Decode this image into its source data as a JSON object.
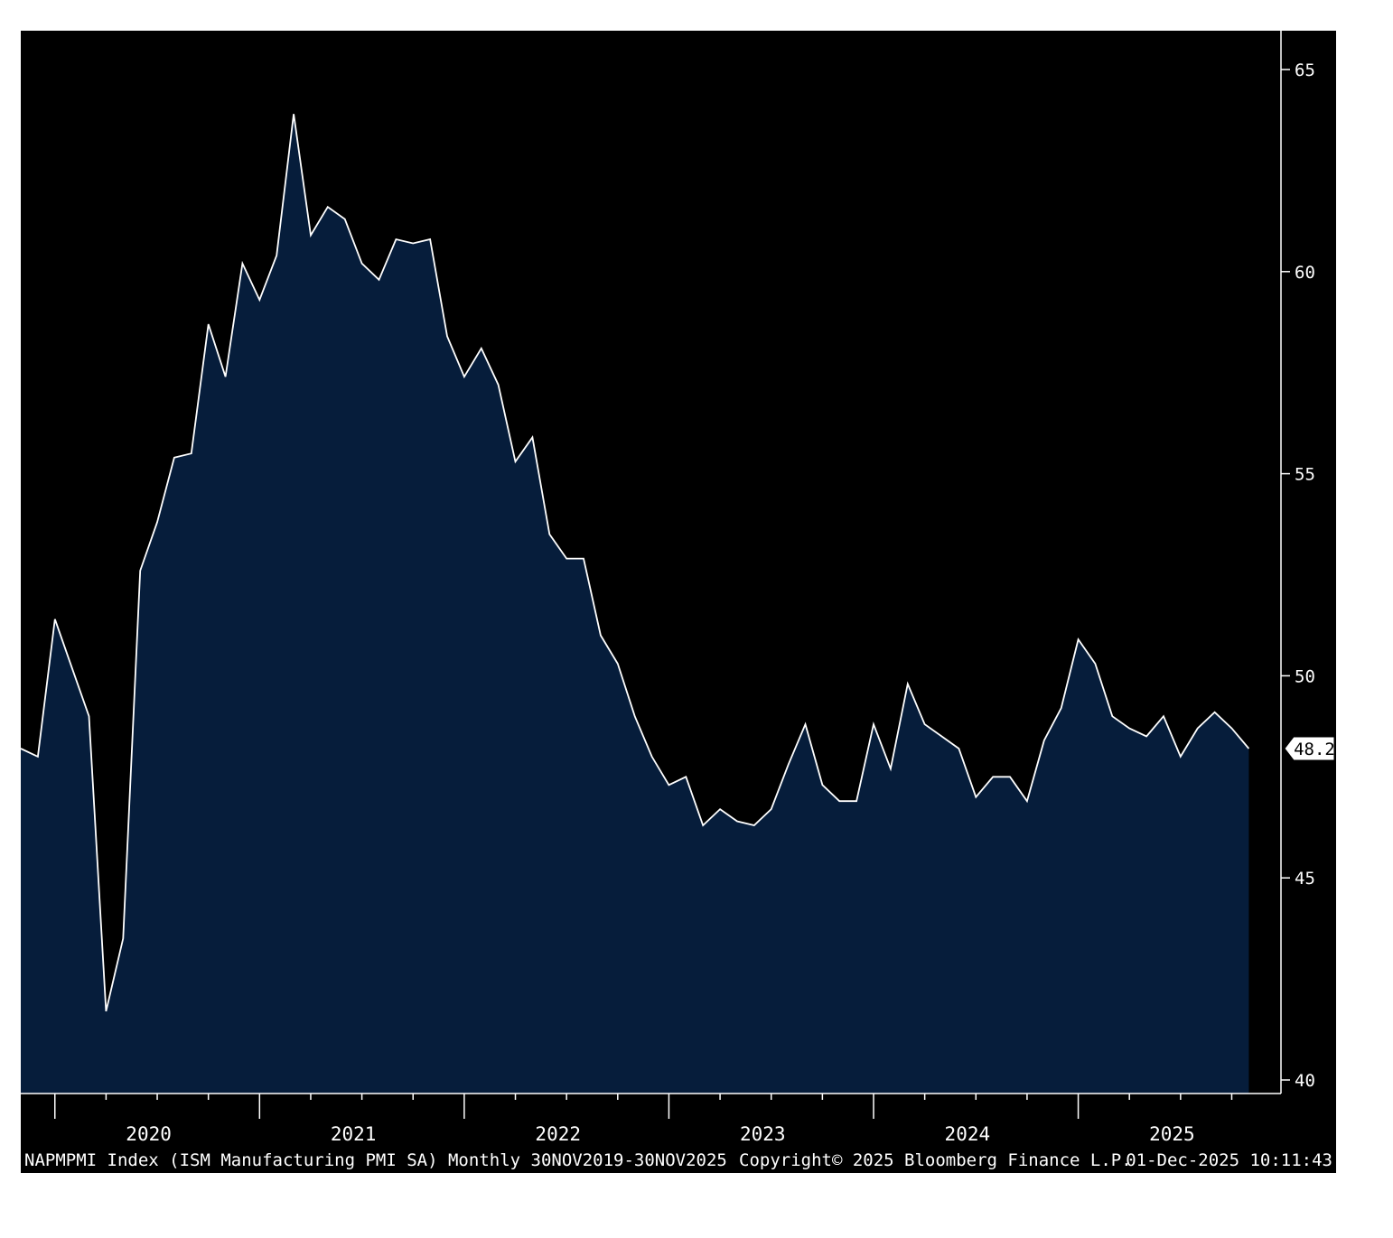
{
  "chart_data": {
    "type": "area",
    "title": "",
    "xlabel": "",
    "ylabel": "",
    "ylim": [
      40,
      66
    ],
    "y_ticks": [
      40,
      45,
      50,
      55,
      60,
      65
    ],
    "grid": false,
    "x_start": "2019-11",
    "x_end": "2025-11",
    "year_labels": [
      "2020",
      "2021",
      "2022",
      "2023",
      "2024",
      "2025"
    ],
    "series": [
      {
        "values": [
          48.2,
          48.0,
          51.4,
          50.2,
          49.0,
          41.7,
          43.5,
          52.6,
          53.8,
          55.4,
          55.5,
          58.7,
          57.4,
          60.2,
          59.3,
          60.4,
          63.9,
          60.9,
          61.6,
          61.3,
          60.2,
          59.8,
          60.8,
          60.7,
          60.8,
          58.4,
          57.4,
          58.1,
          57.2,
          55.3,
          55.9,
          53.5,
          52.9,
          52.9,
          51.0,
          50.3,
          49.0,
          48.0,
          47.3,
          47.5,
          46.3,
          46.7,
          46.4,
          46.3,
          46.7,
          47.8,
          48.8,
          47.3,
          46.9,
          46.9,
          48.8,
          47.7,
          49.8,
          48.8,
          48.5,
          48.2,
          47.0,
          47.5,
          47.5,
          46.9,
          48.4,
          49.2,
          50.9,
          50.3,
          49.0,
          48.7,
          48.5,
          49.0,
          48.0,
          48.7,
          49.1,
          48.7,
          48.2
        ]
      }
    ],
    "last_value_label": "48.2",
    "colors": {
      "background": "#000000",
      "area_fill": "#061d3b",
      "line": "#ffffff",
      "axis": "#ffffff"
    }
  },
  "footer": {
    "ticker_info": "NAPMPMI Index (ISM Manufacturing PMI SA) Monthly 30NOV2019-30NOV2025",
    "copyright": "Copyright© 2025 Bloomberg Finance L.P.",
    "timestamp": "01-Dec-2025 10:11:43"
  }
}
